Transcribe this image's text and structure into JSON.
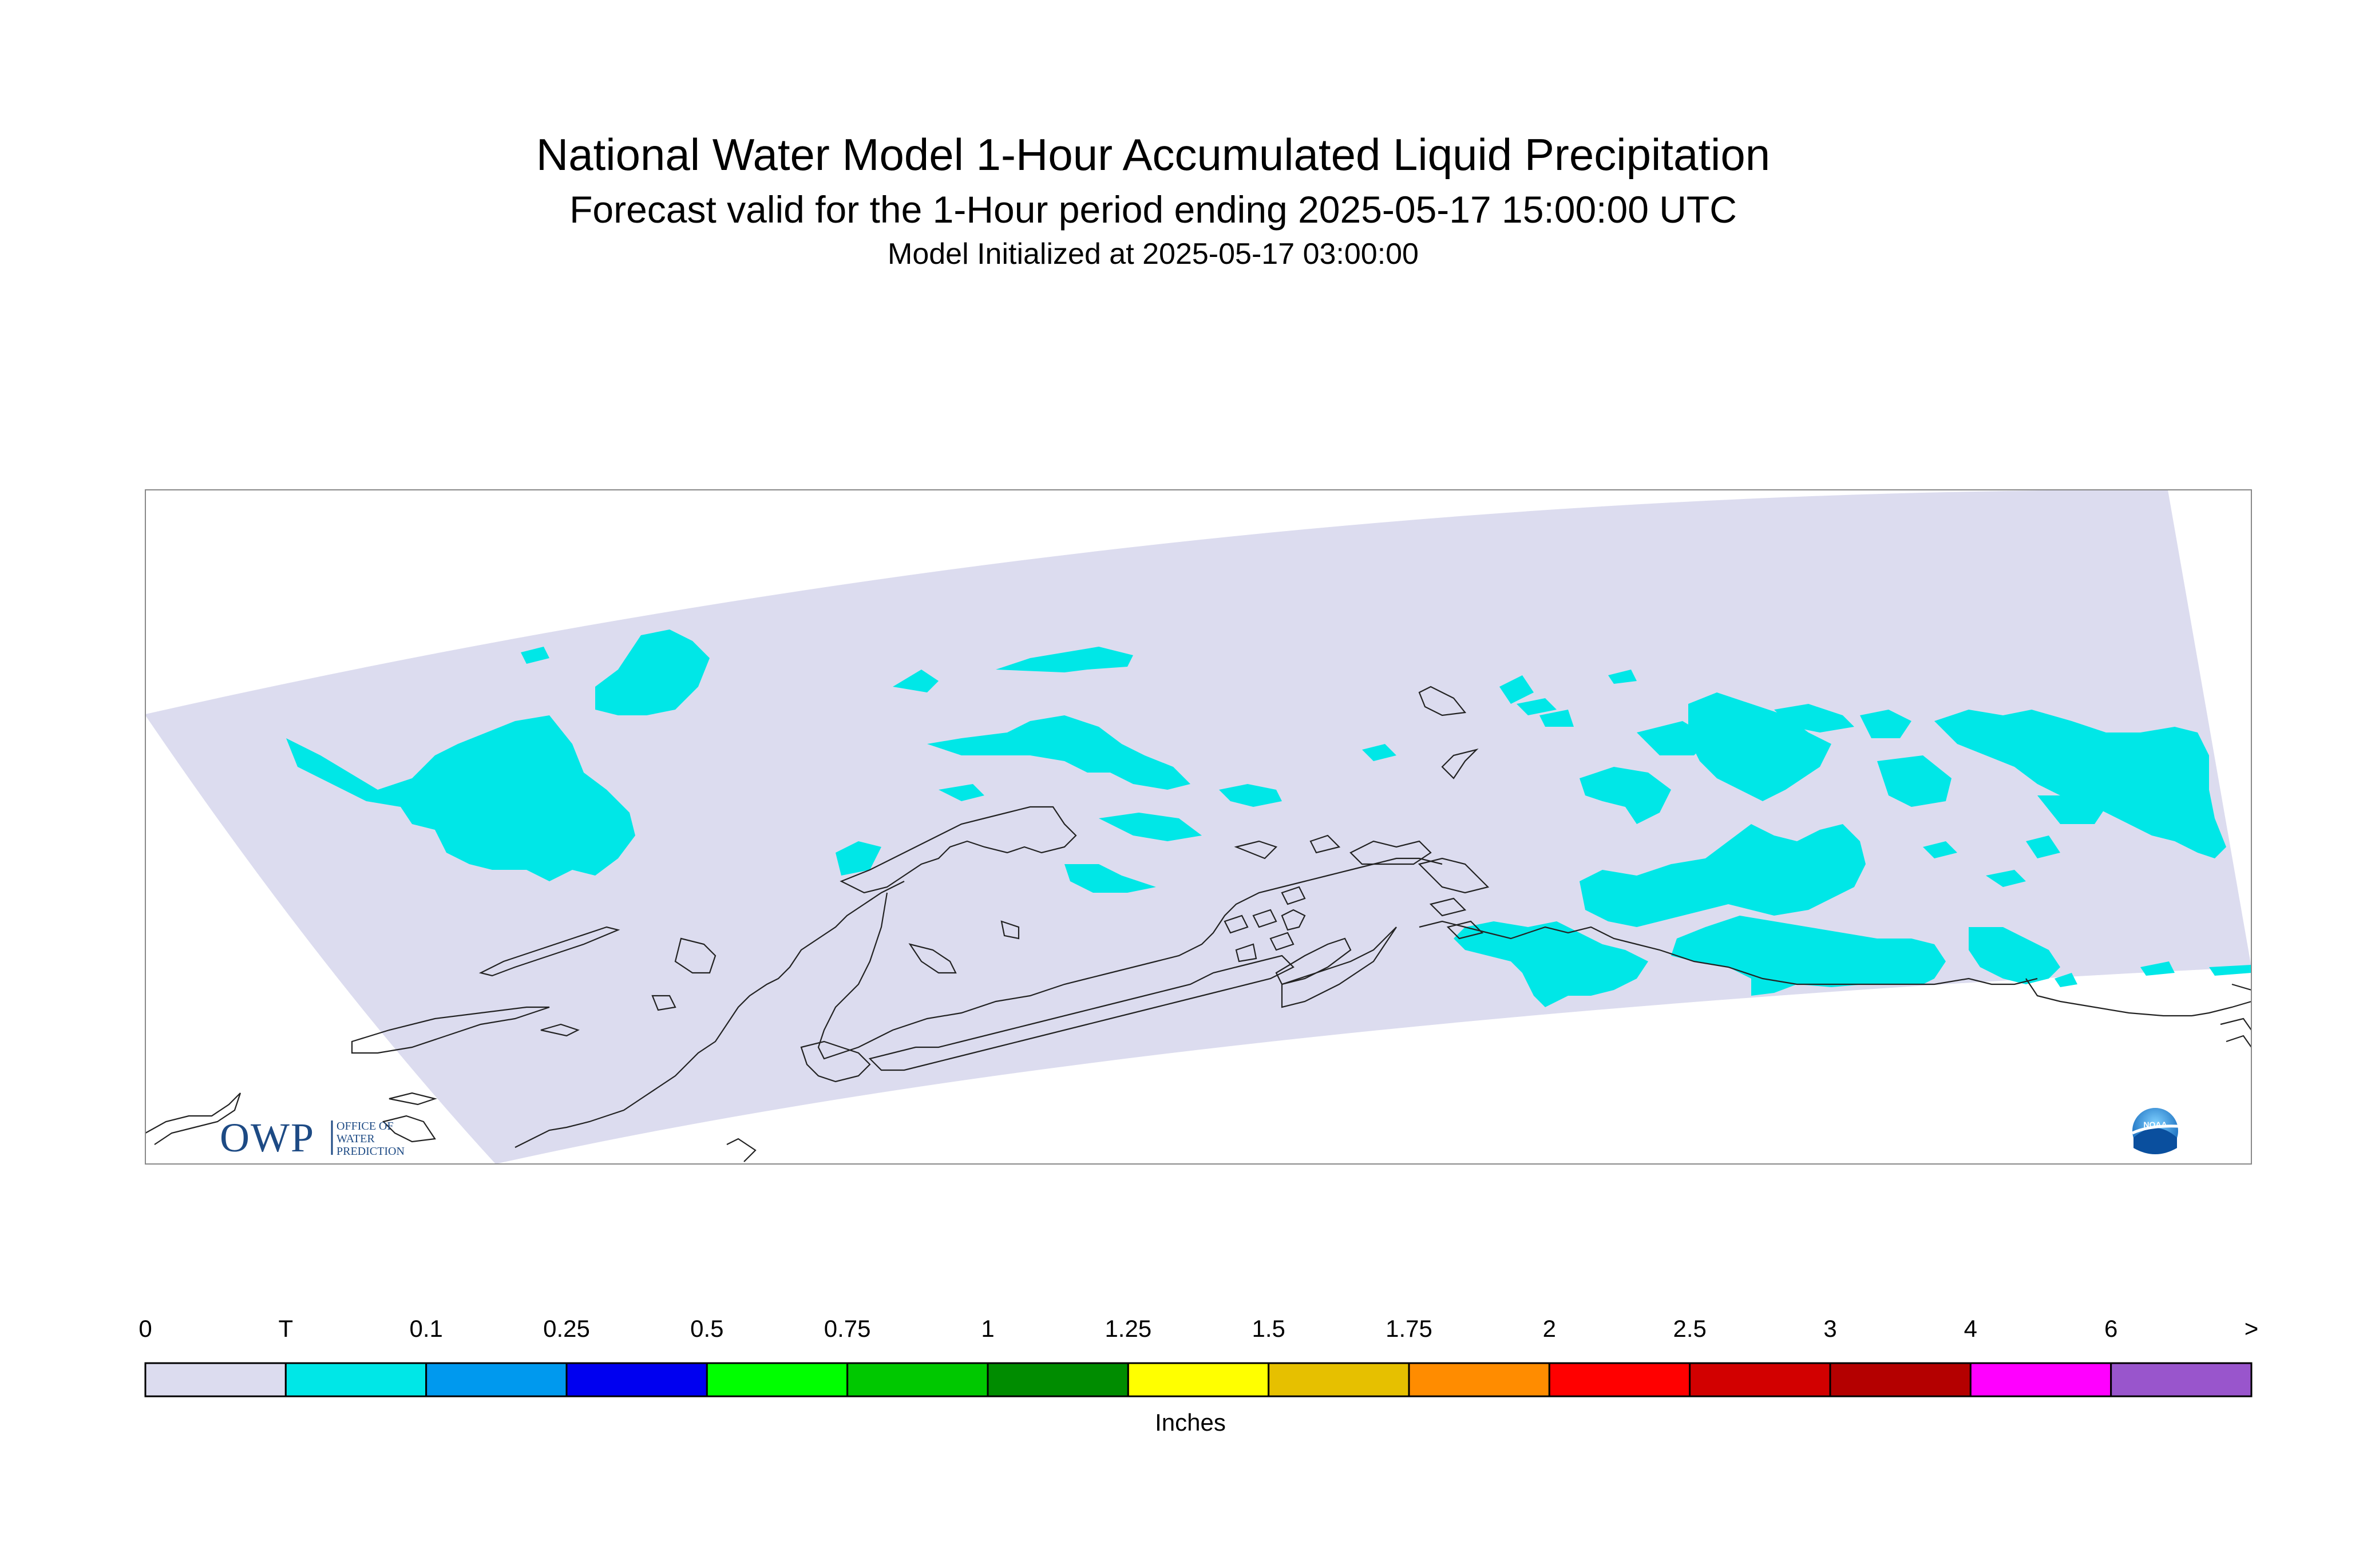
{
  "title": "National Water Model 1-Hour Accumulated Liquid Precipitation",
  "subtitle": "Forecast valid for the 1-Hour period ending 2025-05-17 15:00:00 UTC",
  "init_line": "Model Initialized at 2025-05-17 03:00:00",
  "units": "Inches",
  "logos": {
    "owp_text": "OWP",
    "owp_small": [
      "OFFICE OF",
      "WATER",
      "PREDICTION"
    ],
    "noaa_text": "NOAA"
  },
  "colors": {
    "domain_fill": "#dcdcef",
    "trace_fill": "#00e7e7",
    "coastline": "#222222",
    "frame": "#888888"
  },
  "legend": {
    "labels": [
      "0",
      "T",
      "0.1",
      "0.25",
      "0.5",
      "0.75",
      "1",
      "1.25",
      "1.5",
      "1.75",
      "2",
      "2.5",
      "3",
      "4",
      "6",
      ">"
    ],
    "bins": [
      {
        "color": "#dcdcef"
      },
      {
        "color": "#00e7e7"
      },
      {
        "color": "#0099ee"
      },
      {
        "color": "#0000f0"
      },
      {
        "color": "#00ff00"
      },
      {
        "color": "#00c800"
      },
      {
        "color": "#008c00"
      },
      {
        "color": "#ffff00"
      },
      {
        "color": "#e6c000"
      },
      {
        "color": "#ff8c00"
      },
      {
        "color": "#ff0000"
      },
      {
        "color": "#d20000"
      },
      {
        "color": "#b40000"
      },
      {
        "color": "#ff00ff"
      },
      {
        "color": "#9955cc"
      }
    ]
  }
}
